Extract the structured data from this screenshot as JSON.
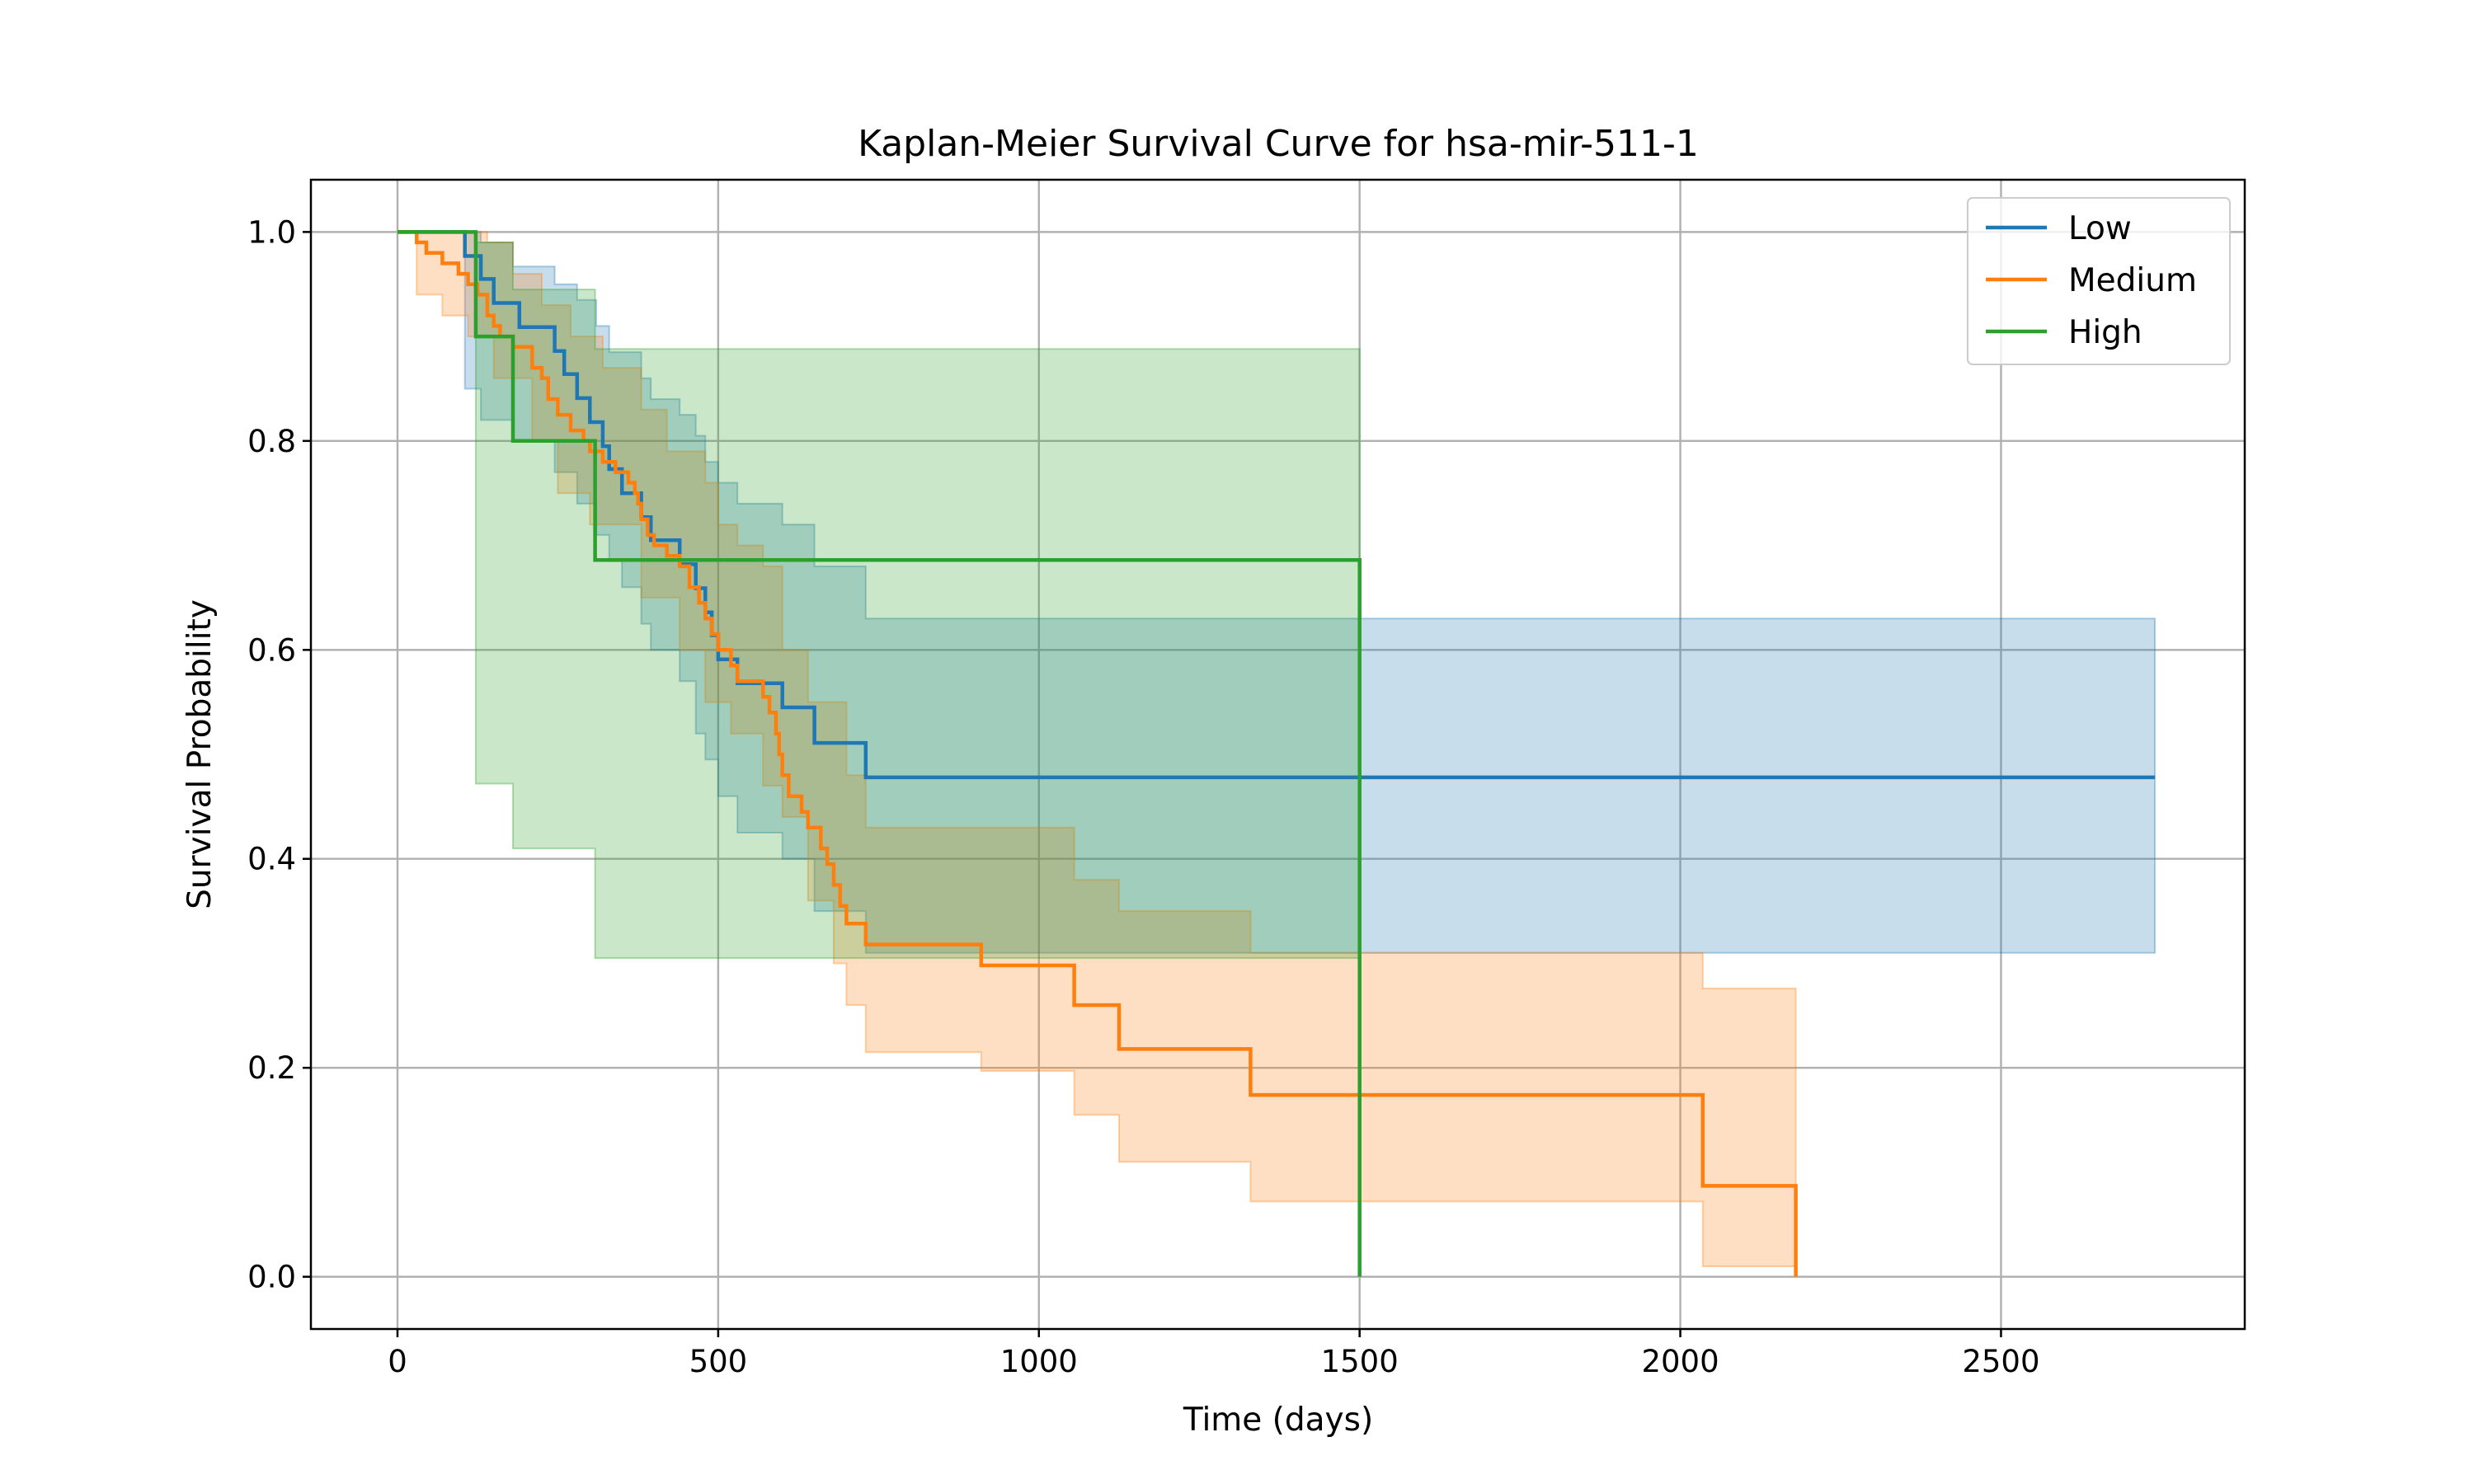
{
  "chart_data": {
    "type": "line",
    "title": "Kaplan-Meier Survival Curve for hsa-mir-511-1",
    "xlabel": "Time (days)",
    "ylabel": "Survival Probability",
    "xlim": [
      -135,
      2880
    ],
    "ylim": [
      -0.05,
      1.05
    ],
    "xticks": [
      0,
      500,
      1000,
      1500,
      2000,
      2500
    ],
    "xtick_labels": [
      "0",
      "500",
      "1000",
      "1500",
      "2000",
      "2500"
    ],
    "yticks": [
      0.0,
      0.2,
      0.4,
      0.6,
      0.8,
      1.0
    ],
    "ytick_labels": [
      "0.0",
      "0.2",
      "0.4",
      "0.6",
      "0.8",
      "1.0"
    ],
    "grid": true,
    "legend_position": "top-right",
    "series": [
      {
        "name": "Low",
        "color": "#1f77b4",
        "steps": [
          [
            0,
            1.0
          ],
          [
            105,
            0.977
          ],
          [
            130,
            0.955
          ],
          [
            150,
            0.932
          ],
          [
            190,
            0.909
          ],
          [
            245,
            0.886
          ],
          [
            260,
            0.864
          ],
          [
            280,
            0.841
          ],
          [
            300,
            0.818
          ],
          [
            320,
            0.795
          ],
          [
            330,
            0.773
          ],
          [
            350,
            0.75
          ],
          [
            380,
            0.727
          ],
          [
            395,
            0.705
          ],
          [
            440,
            0.682
          ],
          [
            465,
            0.659
          ],
          [
            480,
            0.636
          ],
          [
            490,
            0.614
          ],
          [
            500,
            0.591
          ],
          [
            530,
            0.568
          ],
          [
            600,
            0.545
          ],
          [
            650,
            0.511
          ],
          [
            730,
            0.478
          ],
          [
            2740,
            0.478
          ]
        ],
        "ci_upper": [
          [
            0,
            1.0
          ],
          [
            105,
            1.0
          ],
          [
            130,
            0.99
          ],
          [
            180,
            0.967
          ],
          [
            245,
            0.95
          ],
          [
            280,
            0.935
          ],
          [
            310,
            0.91
          ],
          [
            330,
            0.885
          ],
          [
            380,
            0.86
          ],
          [
            395,
            0.84
          ],
          [
            440,
            0.825
          ],
          [
            465,
            0.805
          ],
          [
            480,
            0.78
          ],
          [
            500,
            0.76
          ],
          [
            530,
            0.74
          ],
          [
            600,
            0.72
          ],
          [
            650,
            0.68
          ],
          [
            730,
            0.63
          ],
          [
            2740,
            0.63
          ]
        ],
        "ci_lower": [
          [
            0,
            1.0
          ],
          [
            105,
            0.85
          ],
          [
            130,
            0.82
          ],
          [
            180,
            0.8
          ],
          [
            245,
            0.77
          ],
          [
            280,
            0.74
          ],
          [
            310,
            0.71
          ],
          [
            330,
            0.685
          ],
          [
            350,
            0.66
          ],
          [
            380,
            0.625
          ],
          [
            395,
            0.6
          ],
          [
            440,
            0.57
          ],
          [
            465,
            0.52
          ],
          [
            480,
            0.495
          ],
          [
            500,
            0.46
          ],
          [
            530,
            0.425
          ],
          [
            600,
            0.4
          ],
          [
            650,
            0.35
          ],
          [
            730,
            0.31
          ],
          [
            2740,
            0.31
          ]
        ]
      },
      {
        "name": "Medium",
        "color": "#ff7f0e",
        "steps": [
          [
            0,
            1.0
          ],
          [
            30,
            0.99
          ],
          [
            45,
            0.98
          ],
          [
            70,
            0.97
          ],
          [
            95,
            0.96
          ],
          [
            110,
            0.95
          ],
          [
            125,
            0.94
          ],
          [
            140,
            0.92
          ],
          [
            150,
            0.91
          ],
          [
            160,
            0.9
          ],
          [
            180,
            0.89
          ],
          [
            210,
            0.87
          ],
          [
            225,
            0.86
          ],
          [
            235,
            0.84
          ],
          [
            250,
            0.825
          ],
          [
            270,
            0.81
          ],
          [
            290,
            0.8
          ],
          [
            300,
            0.79
          ],
          [
            320,
            0.78
          ],
          [
            340,
            0.77
          ],
          [
            360,
            0.76
          ],
          [
            370,
            0.75
          ],
          [
            375,
            0.74
          ],
          [
            380,
            0.725
          ],
          [
            390,
            0.71
          ],
          [
            400,
            0.7
          ],
          [
            420,
            0.69
          ],
          [
            440,
            0.68
          ],
          [
            455,
            0.66
          ],
          [
            470,
            0.645
          ],
          [
            480,
            0.63
          ],
          [
            490,
            0.615
          ],
          [
            500,
            0.6
          ],
          [
            520,
            0.585
          ],
          [
            530,
            0.57
          ],
          [
            570,
            0.555
          ],
          [
            580,
            0.54
          ],
          [
            590,
            0.52
          ],
          [
            595,
            0.5
          ],
          [
            600,
            0.48
          ],
          [
            610,
            0.46
          ],
          [
            630,
            0.445
          ],
          [
            640,
            0.43
          ],
          [
            660,
            0.41
          ],
          [
            670,
            0.395
          ],
          [
            680,
            0.375
          ],
          [
            690,
            0.355
          ],
          [
            700,
            0.338
          ],
          [
            730,
            0.318
          ],
          [
            910,
            0.298
          ],
          [
            1055,
            0.26
          ],
          [
            1125,
            0.218
          ],
          [
            1330,
            0.174
          ],
          [
            2035,
            0.087
          ],
          [
            2180,
            0.0
          ]
        ],
        "ci_upper": [
          [
            0,
            1.0
          ],
          [
            140,
            0.99
          ],
          [
            180,
            0.96
          ],
          [
            225,
            0.93
          ],
          [
            270,
            0.9
          ],
          [
            320,
            0.87
          ],
          [
            380,
            0.83
          ],
          [
            420,
            0.79
          ],
          [
            480,
            0.76
          ],
          [
            500,
            0.72
          ],
          [
            530,
            0.7
          ],
          [
            570,
            0.68
          ],
          [
            600,
            0.6
          ],
          [
            640,
            0.55
          ],
          [
            700,
            0.48
          ],
          [
            730,
            0.43
          ],
          [
            1055,
            0.38
          ],
          [
            1125,
            0.35
          ],
          [
            1330,
            0.31
          ],
          [
            2035,
            0.276
          ],
          [
            2180,
            0.276
          ]
        ],
        "ci_lower": [
          [
            0,
            1.0
          ],
          [
            30,
            0.94
          ],
          [
            70,
            0.92
          ],
          [
            110,
            0.9
          ],
          [
            150,
            0.86
          ],
          [
            210,
            0.8
          ],
          [
            250,
            0.75
          ],
          [
            300,
            0.72
          ],
          [
            380,
            0.65
          ],
          [
            440,
            0.6
          ],
          [
            480,
            0.55
          ],
          [
            520,
            0.52
          ],
          [
            570,
            0.47
          ],
          [
            600,
            0.44
          ],
          [
            640,
            0.36
          ],
          [
            680,
            0.3
          ],
          [
            700,
            0.26
          ],
          [
            730,
            0.215
          ],
          [
            910,
            0.197
          ],
          [
            1055,
            0.155
          ],
          [
            1125,
            0.11
          ],
          [
            1330,
            0.072
          ],
          [
            2035,
            0.01
          ],
          [
            2180,
            0.01
          ]
        ]
      },
      {
        "name": "High",
        "color": "#2ca02c",
        "steps": [
          [
            0,
            1.0
          ],
          [
            122,
            0.9
          ],
          [
            180,
            0.8
          ],
          [
            308,
            0.686
          ],
          [
            1500,
            0.0
          ]
        ],
        "ci_upper": [
          [
            0,
            1.0
          ],
          [
            122,
            0.99
          ],
          [
            180,
            0.945
          ],
          [
            308,
            0.888
          ],
          [
            1500,
            0.888
          ]
        ],
        "ci_lower": [
          [
            0,
            1.0
          ],
          [
            122,
            0.472
          ],
          [
            180,
            0.41
          ],
          [
            308,
            0.305
          ],
          [
            1500,
            0.305
          ]
        ]
      }
    ]
  }
}
